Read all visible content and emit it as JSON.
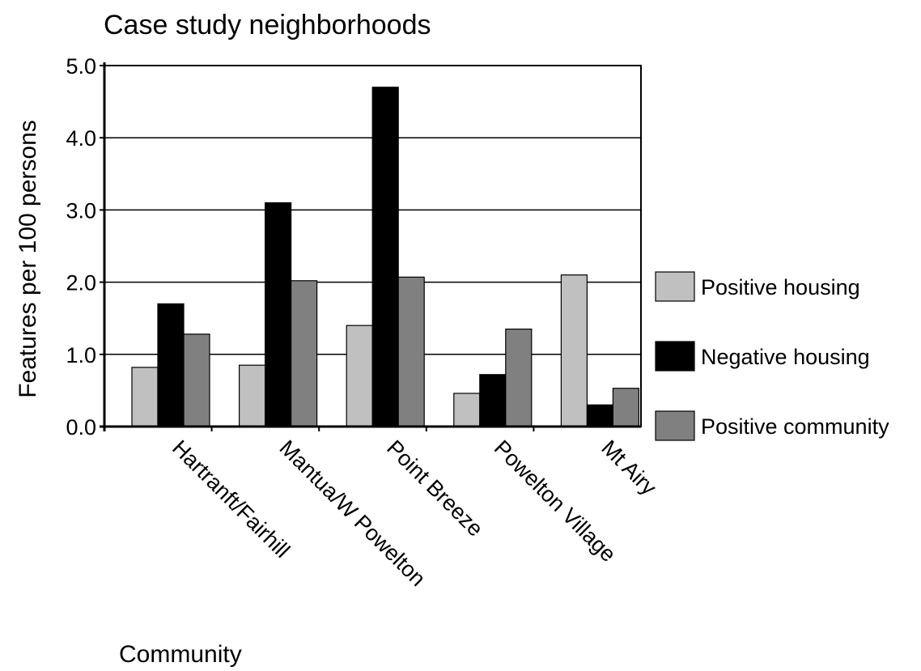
{
  "chart_data": {
    "type": "bar",
    "title": "Case study neighborhoods",
    "xlabel": "Community",
    "ylabel": "Features per 100 persons",
    "ylim": [
      0,
      5
    ],
    "yticks": [
      "0.0",
      "1.0",
      "2.0",
      "3.0",
      "4.0",
      "5.0"
    ],
    "grid": true,
    "legend_position": "right",
    "categories": [
      "Hartranft/Fairhill",
      "Mantua/W Powelton",
      "Point Breeze",
      "Powelton Village",
      "Mt Airy"
    ],
    "series": [
      {
        "name": "Positive housing",
        "color": "#c0c0c0",
        "values": [
          0.82,
          0.85,
          1.4,
          0.46,
          2.1
        ]
      },
      {
        "name": "Negative housing",
        "color": "#000000",
        "values": [
          1.7,
          3.1,
          4.7,
          0.72,
          0.3
        ]
      },
      {
        "name": "Positive community",
        "color": "#808080",
        "values": [
          1.28,
          2.02,
          2.07,
          1.35,
          0.53
        ]
      }
    ]
  }
}
